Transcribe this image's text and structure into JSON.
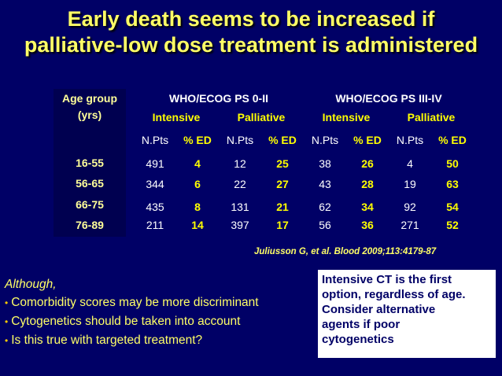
{
  "title": {
    "line1": "Early death seems to be increased if",
    "line2": "palliative-low dose treatment is administered"
  },
  "table": {
    "age_group_label": "Age group",
    "age_group_unit": "(yrs)",
    "groups": [
      "WHO/ECOG PS 0-II",
      "WHO/ECOG PS III-IV"
    ],
    "treatments": [
      "Intensive",
      "Palliative",
      "Intensive",
      "Palliative"
    ],
    "col_labels": [
      "N.Pts",
      "% ED",
      "N.Pts",
      "% ED",
      "N.Pts",
      "% ED",
      "N.Pts",
      "% ED"
    ],
    "rows": [
      {
        "age": "16-55",
        "values": [
          "491",
          "4",
          "12",
          "25",
          "38",
          "26",
          "4",
          "50"
        ]
      },
      {
        "age": "56-65",
        "values": [
          "344",
          "6",
          "22",
          "27",
          "43",
          "28",
          "19",
          "63"
        ]
      },
      {
        "age": "66-75",
        "values": [
          "435",
          "8",
          "131",
          "21",
          "62",
          "34",
          "92",
          "54"
        ]
      },
      {
        "age": "76-89",
        "values": [
          "211",
          "14",
          "397",
          "17",
          "56",
          "36",
          "271",
          "52"
        ]
      }
    ]
  },
  "citation": "Juliusson G, et al. Blood 2009;113:4179-87",
  "notes": {
    "lead": "Although,",
    "bullets": [
      "Comorbidity scores may be more discriminant",
      "Cytogenetics should be taken into account",
      "Is this true with targeted treatment?"
    ]
  },
  "callout": {
    "lines": [
      "Intensive CT is the first",
      "option, regardless of age.",
      "Consider alternative",
      "agents if poor",
      "cytogenetics"
    ]
  },
  "colors": {
    "background": "#000066",
    "title": "#FFFF66",
    "highlight": "#FFFF00",
    "callout_bg": "#FFFFFF"
  }
}
